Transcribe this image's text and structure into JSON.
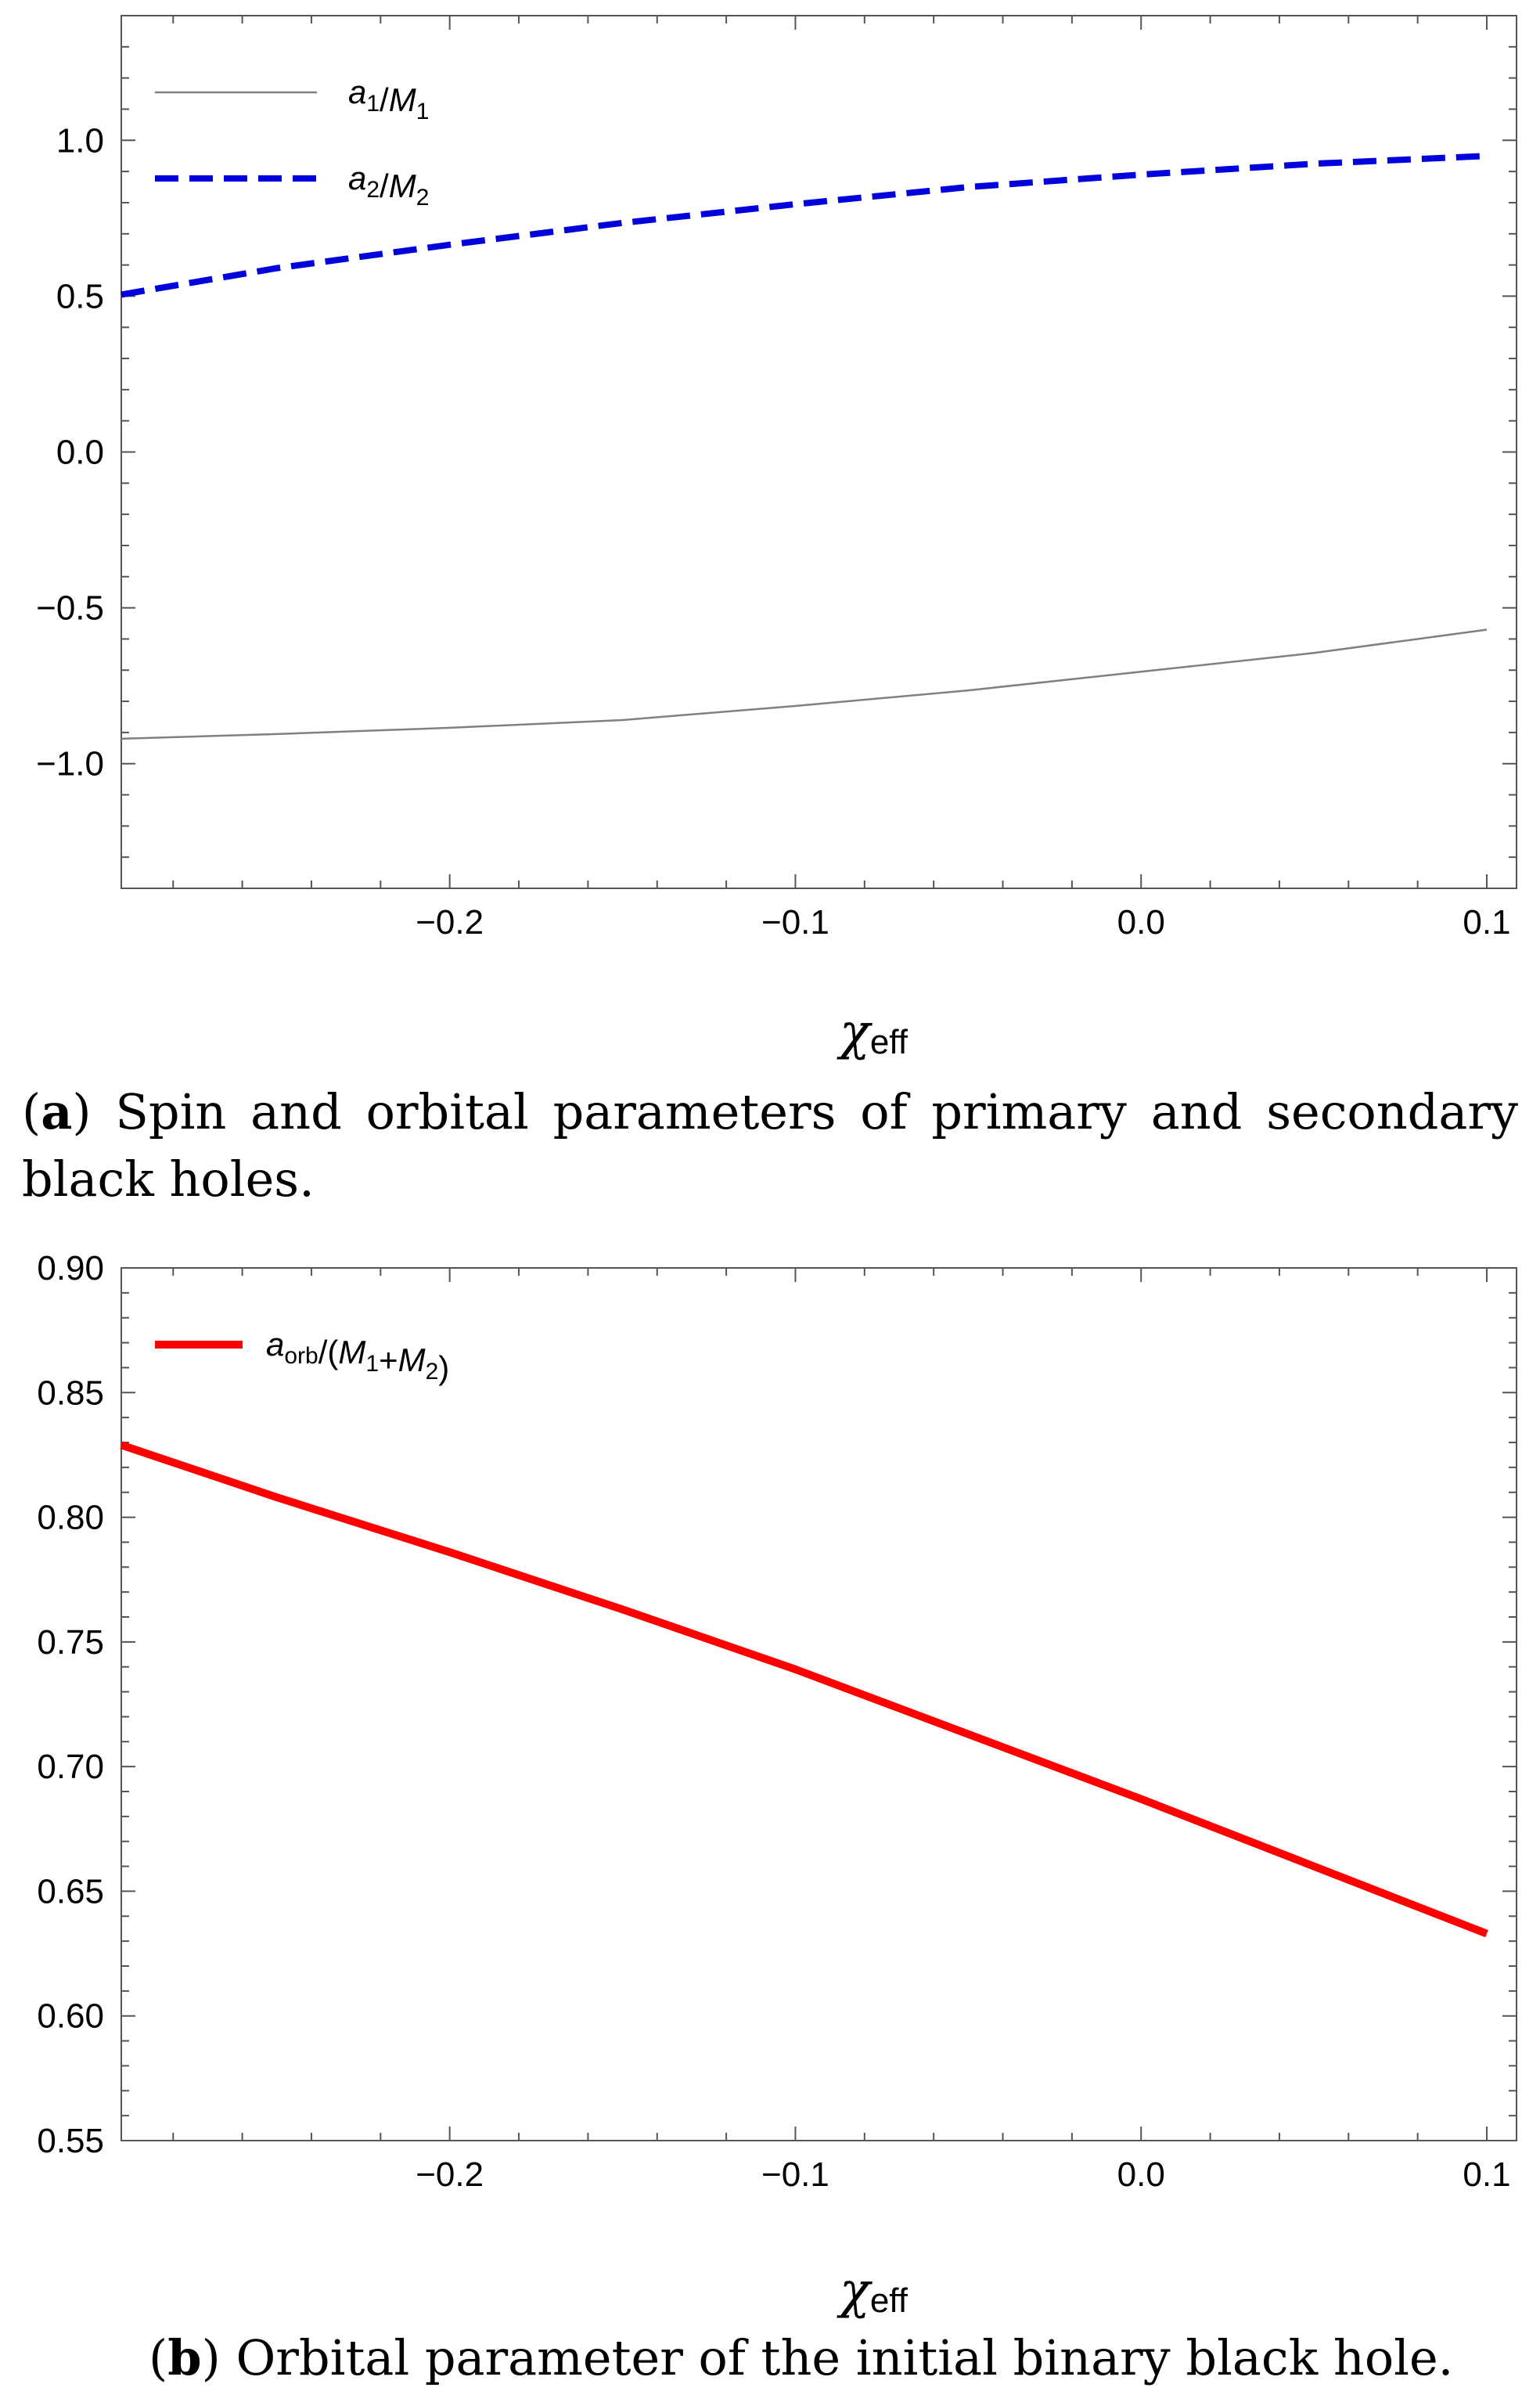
{
  "chart_data": [
    {
      "type": "line",
      "panel": "(a)",
      "caption_label": "a",
      "caption_text": "Spin and orbital parameters of primary and secondary black holes.",
      "xlabel_main": "χ",
      "xlabel_sub": "eff",
      "xlim": [
        -0.295,
        0.1
      ],
      "ylim": [
        -1.4,
        1.4
      ],
      "xticks": [
        -0.2,
        -0.1,
        0.0,
        0.1
      ],
      "xtick_labels": [
        "−0.2",
        "−0.1",
        "0.0",
        "0.1"
      ],
      "yticks": [
        -1.0,
        -0.5,
        0.0,
        0.5,
        1.0
      ],
      "ytick_labels": [
        "−1.0",
        "−0.5",
        "0.0",
        "0.5",
        "1.0"
      ],
      "legend_position": "top-left",
      "series": [
        {
          "name": "a1/M1",
          "label_parts": {
            "a": "a",
            "a_sub": "1",
            "sep": "/",
            "m": "M",
            "m_sub": "1"
          },
          "color": "#808080",
          "style": "solid",
          "x": [
            -0.295,
            -0.25,
            -0.2,
            -0.15,
            -0.1,
            -0.05,
            0.0,
            0.05,
            0.1
          ],
          "y": [
            -0.92,
            -0.905,
            -0.885,
            -0.86,
            -0.815,
            -0.765,
            -0.705,
            -0.645,
            -0.57
          ]
        },
        {
          "name": "a2/M2",
          "label_parts": {
            "a": "a",
            "a_sub": "2",
            "sep": "/",
            "m": "M",
            "m_sub": "2"
          },
          "color": "#0000dd",
          "style": "dashed",
          "x": [
            -0.295,
            -0.25,
            -0.2,
            -0.15,
            -0.1,
            -0.05,
            0.0,
            0.05,
            0.1
          ],
          "y": [
            0.505,
            0.59,
            0.665,
            0.735,
            0.795,
            0.85,
            0.89,
            0.925,
            0.95
          ]
        }
      ]
    },
    {
      "type": "line",
      "panel": "(b)",
      "caption_label": "b",
      "caption_text": "Orbital parameter of the initial binary black hole.",
      "xlabel_main": "χ",
      "xlabel_sub": "eff",
      "xlim": [
        -0.295,
        0.1
      ],
      "ylim": [
        0.55,
        0.9
      ],
      "xticks": [
        -0.2,
        -0.1,
        0.0,
        0.1
      ],
      "xtick_labels": [
        "−0.2",
        "−0.1",
        "0.0",
        "0.1"
      ],
      "yticks": [
        0.55,
        0.6,
        0.65,
        0.7,
        0.75,
        0.8,
        0.85,
        0.9
      ],
      "ytick_labels": [
        "0.55",
        "0.60",
        "0.65",
        "0.70",
        "0.75",
        "0.80",
        "0.85",
        "0.90"
      ],
      "legend_position": "top-left",
      "series": [
        {
          "name": "aorb/(M1+M2)",
          "label_parts": {
            "a": "a",
            "a_sub": "orb",
            "sep": "/(",
            "m": "M",
            "m_sub": "1",
            "plus": "+",
            "m2": "M",
            "m2_sub": "2",
            "close": ")"
          },
          "color": "#ff0000",
          "style": "solid",
          "x": [
            -0.295,
            -0.25,
            -0.2,
            -0.15,
            -0.1,
            -0.05,
            0.0,
            0.05,
            0.1
          ],
          "y": [
            0.829,
            0.808,
            0.786,
            0.763,
            0.739,
            0.713,
            0.687,
            0.66,
            0.633
          ]
        }
      ]
    }
  ]
}
